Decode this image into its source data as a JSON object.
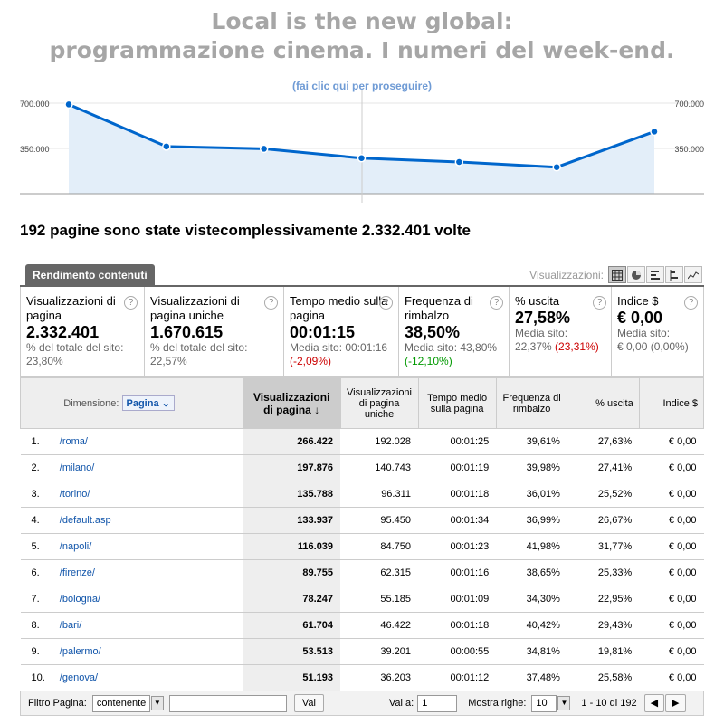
{
  "header": {
    "title_line1": "Local is the new global:",
    "title_line2": "programmazione cinema. I numeri del week-end.",
    "link": "(fai clic qui per proseguire)"
  },
  "chart_data": {
    "type": "area",
    "values": [
      690000,
      365000,
      347000,
      275000,
      245000,
      205000,
      480000
    ],
    "ylim": [
      0,
      700000
    ],
    "ytick_labels": [
      "700.000",
      "350.000"
    ],
    "color": "#0066cc",
    "fill": "#e3eef9"
  },
  "headline": "192 pagine sono state vistecomplessivamente 2.332.401 volte",
  "tab": {
    "label": "Rendimento contenuti"
  },
  "views": {
    "label": "Visualizzazioni:"
  },
  "metrics": [
    {
      "name": "Visualizzazioni di pagina",
      "value": "2.332.401",
      "sub1": "% del totale del sito:",
      "sub2": "23,80%",
      "delta": ""
    },
    {
      "name": "Visualizzazioni di pagina uniche",
      "value": "1.670.615",
      "sub1": "% del totale del sito:",
      "sub2": "22,57%",
      "delta": ""
    },
    {
      "name": "Tempo medio sulla pagina",
      "value": "00:01:15",
      "sub1": "Media sito: 00:01:16",
      "sub2": "",
      "delta": "(-2,09%)"
    },
    {
      "name": "Frequenza di rimbalzo",
      "value": "38,50%",
      "sub1": "Media sito: 43,80%",
      "sub2": "",
      "delta": "(-12,10%)"
    },
    {
      "name": "% uscita",
      "value": "27,58%",
      "sub1": "Media sito:",
      "sub2": "22,37%",
      "delta": "(23,31%)"
    },
    {
      "name": "Indice $",
      "value": "€ 0,00",
      "sub1": "Media sito:",
      "sub2": "€ 0,00 (0,00%)",
      "delta": ""
    }
  ],
  "table": {
    "dimension_label": "Dimensione:",
    "dimension_value": "Pagina",
    "headers": [
      "Visualizzazioni di pagina",
      "Visualizzazioni di pagina uniche",
      "Tempo medio sulla pagina",
      "Frequenza di rimbalzo",
      "% uscita",
      "Indice $"
    ],
    "rows": [
      [
        "1.",
        "/roma/",
        "266.422",
        "192.028",
        "00:01:25",
        "39,61%",
        "27,63%",
        "€ 0,00"
      ],
      [
        "2.",
        "/milano/",
        "197.876",
        "140.743",
        "00:01:19",
        "39,98%",
        "27,41%",
        "€ 0,00"
      ],
      [
        "3.",
        "/torino/",
        "135.788",
        "96.311",
        "00:01:18",
        "36,01%",
        "25,52%",
        "€ 0,00"
      ],
      [
        "4.",
        "/default.asp",
        "133.937",
        "95.450",
        "00:01:34",
        "36,99%",
        "26,67%",
        "€ 0,00"
      ],
      [
        "5.",
        "/napoli/",
        "116.039",
        "84.750",
        "00:01:23",
        "41,98%",
        "31,77%",
        "€ 0,00"
      ],
      [
        "6.",
        "/firenze/",
        "89.755",
        "62.315",
        "00:01:16",
        "38,65%",
        "25,33%",
        "€ 0,00"
      ],
      [
        "7.",
        "/bologna/",
        "78.247",
        "55.185",
        "00:01:09",
        "34,30%",
        "22,95%",
        "€ 0,00"
      ],
      [
        "8.",
        "/bari/",
        "61.704",
        "46.422",
        "00:01:18",
        "40,42%",
        "29,43%",
        "€ 0,00"
      ],
      [
        "9.",
        "/palermo/",
        "53.513",
        "39.201",
        "00:00:55",
        "34,81%",
        "19,81%",
        "€ 0,00"
      ],
      [
        "10.",
        "/genova/",
        "51.193",
        "36.203",
        "00:01:12",
        "37,48%",
        "25,58%",
        "€ 0,00"
      ]
    ]
  },
  "footer": {
    "filter_label": "Filtro Pagina:",
    "filter_mode": "contenente",
    "filter_value": "",
    "go_label": "Vai",
    "goto_label": "Vai a:",
    "goto_value": "1",
    "rows_label": "Mostra righe:",
    "rows_value": "10",
    "range": "1 - 10 di 192"
  }
}
